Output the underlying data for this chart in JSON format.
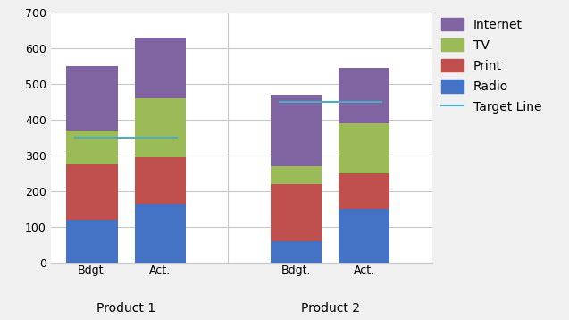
{
  "categories": [
    "Bdgt.",
    "Act.",
    "Bdgt.",
    "Act."
  ],
  "group_labels": [
    "Product 1",
    "Product 2"
  ],
  "radio": [
    120,
    165,
    60,
    150
  ],
  "print": [
    155,
    130,
    160,
    100
  ],
  "tv": [
    95,
    165,
    50,
    140
  ],
  "internet": [
    180,
    170,
    200,
    155
  ],
  "target_lines": [
    {
      "x_center": 0.5,
      "y": 350
    },
    {
      "x_center": 3.5,
      "y": 450
    }
  ],
  "colors": {
    "radio": "#4472C4",
    "print": "#C0504D",
    "tv": "#9BBB59",
    "internet": "#8064A2"
  },
  "target_color": "#4BACC6",
  "ylim": [
    0,
    700
  ],
  "yticks": [
    0,
    100,
    200,
    300,
    400,
    500,
    600,
    700
  ],
  "bar_positions": [
    0,
    1,
    3,
    4
  ],
  "bar_width": 0.75,
  "xlim": [
    -0.6,
    5.0
  ],
  "group_centers": [
    0.5,
    3.5
  ],
  "separator_x": [
    2.0
  ],
  "background_color": "#F0F0F0",
  "plot_bg_color": "#FFFFFF",
  "grid_color": "#C8C8C8",
  "legend_fontsize": 10,
  "tick_fontsize": 9,
  "group_label_fontsize": 10
}
